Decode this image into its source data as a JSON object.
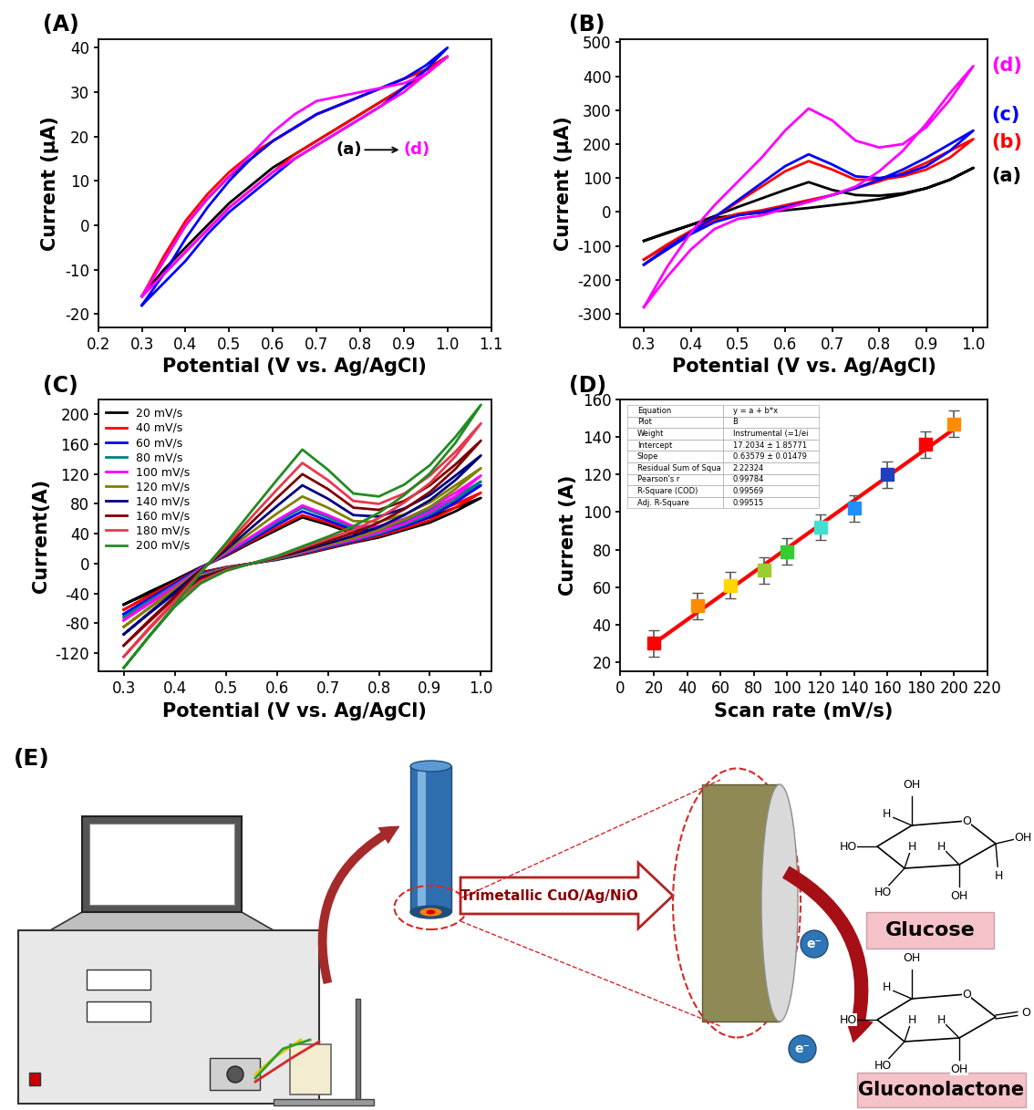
{
  "chart_data": [
    {
      "type": "line",
      "panel_label": "(A)",
      "x_label": "Potential (V vs. Ag/AgCl)",
      "y_label": "Current (μA)",
      "x": [
        0.3,
        0.35,
        0.4,
        0.45,
        0.5,
        0.55,
        0.6,
        0.65,
        0.7,
        0.75,
        0.8,
        0.85,
        0.9,
        0.95,
        1.0,
        0.95,
        0.9,
        0.85,
        0.8,
        0.75,
        0.7,
        0.65,
        0.6,
        0.55,
        0.5,
        0.45,
        0.4,
        0.35,
        0.3
      ],
      "series": [
        {
          "color": "#000000",
          "values": [
            -16,
            -8,
            0,
            6,
            11,
            15,
            19,
            22,
            25,
            27,
            29,
            31,
            33,
            35,
            38,
            35,
            31,
            28,
            25,
            22,
            19,
            16,
            13,
            9,
            5,
            0,
            -5,
            -10,
            -16
          ]
        },
        {
          "color": "#ff0000",
          "values": [
            -16,
            -7,
            1,
            7,
            12,
            16,
            19,
            22,
            25,
            27,
            29,
            31,
            33,
            35,
            38,
            34,
            31,
            28,
            25,
            22,
            19,
            16,
            12,
            8,
            4,
            -1,
            -6,
            -11,
            -16
          ]
        },
        {
          "color": "#0000ff",
          "values": [
            -18,
            -11,
            -3,
            4,
            10,
            15,
            19,
            22,
            25,
            27,
            29,
            31,
            33,
            36,
            40,
            35,
            31,
            27,
            24,
            21,
            18,
            15,
            11,
            7,
            3,
            -2,
            -8,
            -13,
            -18
          ]
        },
        {
          "color": "#ff00ff",
          "values": [
            -16,
            -8,
            0,
            6,
            11,
            16,
            21,
            25,
            28,
            29,
            30,
            31,
            32,
            34,
            38,
            34,
            30,
            27,
            24,
            21,
            18,
            15,
            12,
            8,
            4,
            -1,
            -6,
            -11,
            -16
          ]
        }
      ],
      "annotations": [
        {
          "text": "(a)",
          "color": "#000000"
        },
        {
          "text": "(d)",
          "color": "#ff00ff"
        }
      ],
      "xlim": [
        0.2,
        1.1
      ],
      "xticks": [
        0.2,
        0.3,
        0.4,
        0.5,
        0.6,
        0.7,
        0.8,
        0.9,
        1.0,
        1.1
      ],
      "ylim": [
        -23,
        42
      ],
      "yticks": [
        -20,
        -10,
        0,
        10,
        20,
        30,
        40
      ]
    },
    {
      "type": "line",
      "panel_label": "(B)",
      "x_label": "Potential (V vs. Ag/AgCl)",
      "y_label": "Current (μA)",
      "x": [
        0.3,
        0.35,
        0.4,
        0.45,
        0.5,
        0.55,
        0.6,
        0.65,
        0.7,
        0.75,
        0.8,
        0.85,
        0.9,
        0.95,
        1.0,
        0.95,
        0.9,
        0.85,
        0.8,
        0.75,
        0.7,
        0.65,
        0.6,
        0.55,
        0.5,
        0.45,
        0.4,
        0.35,
        0.3
      ],
      "series": [
        {
          "color": "#000000",
          "values": [
            -85,
            -60,
            -38,
            -12,
            15,
            40,
            65,
            88,
            65,
            50,
            48,
            55,
            70,
            95,
            130,
            95,
            70,
            52,
            38,
            28,
            20,
            12,
            5,
            -2,
            -8,
            -18,
            -38,
            -62,
            -85
          ]
        },
        {
          "color": "#ff0000",
          "values": [
            -140,
            -95,
            -55,
            -15,
            30,
            75,
            120,
            150,
            125,
            95,
            95,
            105,
            125,
            160,
            215,
            180,
            145,
            115,
            90,
            70,
            50,
            35,
            20,
            5,
            -5,
            -25,
            -60,
            -100,
            -140
          ]
        },
        {
          "color": "#0000ff",
          "values": [
            -155,
            -105,
            -60,
            -15,
            35,
            85,
            135,
            170,
            140,
            105,
            100,
            110,
            135,
            180,
            240,
            200,
            160,
            125,
            95,
            70,
            50,
            30,
            15,
            0,
            -10,
            -30,
            -65,
            -110,
            -155
          ]
        },
        {
          "color": "#ff00ff",
          "values": [
            -280,
            -160,
            -60,
            20,
            90,
            160,
            240,
            305,
            270,
            210,
            190,
            200,
            250,
            330,
            430,
            350,
            260,
            180,
            120,
            75,
            50,
            30,
            10,
            -10,
            -20,
            -50,
            -110,
            -190,
            -280
          ]
        }
      ],
      "annotations": [
        {
          "text": "(a)",
          "color": "#000000"
        },
        {
          "text": "(b)",
          "color": "#ff0000"
        },
        {
          "text": "(c)",
          "color": "#0000ff"
        },
        {
          "text": "(d)",
          "color": "#ff00ff"
        }
      ],
      "xlim": [
        0.25,
        1.03
      ],
      "xticks": [
        0.3,
        0.4,
        0.5,
        0.6,
        0.7,
        0.8,
        0.9,
        1.0
      ],
      "ylim": [
        -340,
        510
      ],
      "yticks": [
        -300,
        -200,
        -100,
        0,
        100,
        200,
        300,
        400,
        500
      ]
    },
    {
      "type": "line",
      "panel_label": "(C)",
      "x_label": "Potential (V vs. Ag/AgCl)",
      "y_label": "Current(A)",
      "x": [
        0.3,
        0.35,
        0.4,
        0.45,
        0.5,
        0.55,
        0.6,
        0.65,
        0.7,
        0.75,
        0.8,
        0.85,
        0.9,
        0.95,
        1.0,
        0.95,
        0.9,
        0.85,
        0.8,
        0.75,
        0.7,
        0.65,
        0.6,
        0.55,
        0.5,
        0.45,
        0.4,
        0.35,
        0.3
      ],
      "legend": "upper left",
      "series": [
        {
          "name": "20 mV/s",
          "color": "#000000",
          "values": [
            -55,
            -38,
            -22,
            -5,
            10,
            28,
            45,
            62,
            52,
            40,
            42,
            50,
            62,
            75,
            88,
            70,
            55,
            45,
            35,
            28,
            20,
            12,
            5,
            0,
            -5,
            -12,
            -25,
            -40,
            -55
          ]
        },
        {
          "name": "40 mV/s",
          "color": "#ff0000",
          "values": [
            -62,
            -43,
            -25,
            -6,
            11,
            30,
            48,
            65,
            55,
            42,
            44,
            52,
            65,
            80,
            95,
            75,
            58,
            47,
            37,
            29,
            21,
            13,
            6,
            0,
            -5,
            -13,
            -27,
            -44,
            -62
          ]
        },
        {
          "name": "60 mV/s",
          "color": "#0000ff",
          "values": [
            -68,
            -47,
            -27,
            -6,
            12,
            32,
            52,
            70,
            58,
            45,
            46,
            55,
            68,
            85,
            105,
            82,
            63,
            50,
            39,
            30,
            22,
            14,
            6,
            0,
            -6,
            -14,
            -29,
            -48,
            -68
          ]
        },
        {
          "name": "80 mV/s",
          "color": "#008080",
          "values": [
            -72,
            -50,
            -29,
            -7,
            13,
            34,
            55,
            75,
            62,
            48,
            48,
            58,
            72,
            90,
            110,
            86,
            66,
            52,
            40,
            31,
            23,
            14,
            6,
            0,
            -6,
            -15,
            -31,
            -51,
            -72
          ]
        },
        {
          "name": "100 mV/s",
          "color": "#ff00ff",
          "values": [
            -76,
            -53,
            -31,
            -7,
            14,
            36,
            58,
            78,
            65,
            50,
            50,
            60,
            75,
            95,
            118,
            90,
            69,
            54,
            42,
            32,
            24,
            15,
            7,
            0,
            -7,
            -16,
            -33,
            -54,
            -76
          ]
        },
        {
          "name": "120 mV/s",
          "color": "#808000",
          "values": [
            -85,
            -59,
            -34,
            -8,
            16,
            42,
            67,
            90,
            75,
            57,
            56,
            66,
            82,
            105,
            128,
            100,
            76,
            59,
            45,
            34,
            25,
            16,
            7,
            0,
            -7,
            -17,
            -36,
            -60,
            -85
          ]
        },
        {
          "name": "140 mV/s",
          "color": "#000080",
          "values": [
            -95,
            -66,
            -38,
            -9,
            18,
            48,
            77,
            105,
            87,
            65,
            63,
            74,
            92,
            118,
            145,
            112,
            85,
            65,
            49,
            37,
            27,
            17,
            8,
            0,
            -8,
            -19,
            -40,
            -67,
            -95
          ]
        },
        {
          "name": "160 mV/s",
          "color": "#800000",
          "values": [
            -110,
            -76,
            -44,
            -10,
            21,
            55,
            88,
            120,
            100,
            75,
            72,
            84,
            105,
            133,
            165,
            127,
            96,
            73,
            55,
            41,
            30,
            19,
            8,
            0,
            -8,
            -21,
            -46,
            -78,
            -110
          ]
        },
        {
          "name": "180 mV/s",
          "color": "#e8384f",
          "values": [
            -125,
            -86,
            -50,
            -12,
            24,
            62,
            99,
            135,
            112,
            84,
            80,
            94,
            118,
            150,
            188,
            144,
            108,
            82,
            61,
            45,
            33,
            21,
            9,
            0,
            -9,
            -24,
            -52,
            -88,
            -125
          ]
        },
        {
          "name": "200 mV/s",
          "color": "#228b22",
          "values": [
            -140,
            -97,
            -56,
            -13,
            27,
            70,
            112,
            153,
            126,
            94,
            90,
            106,
            132,
            170,
            213,
            162,
            121,
            92,
            68,
            50,
            36,
            23,
            10,
            0,
            -10,
            -27,
            -58,
            -98,
            -140
          ]
        }
      ],
      "xlim": [
        0.25,
        1.02
      ],
      "xticks": [
        0.3,
        0.4,
        0.5,
        0.6,
        0.7,
        0.8,
        0.9,
        1.0
      ],
      "ylim": [
        -145,
        220
      ],
      "yticks": [
        -120,
        -80,
        -40,
        0,
        40,
        80,
        120,
        160,
        200
      ]
    },
    {
      "type": "scatter",
      "panel_label": "(D)",
      "x_label": "Scan rate (mV/s)",
      "y_label": "Current (A)",
      "x": [
        20,
        46,
        66,
        86,
        100,
        120,
        140,
        160,
        183,
        200
      ],
      "values": [
        30,
        50,
        61,
        69,
        79,
        92,
        102,
        120,
        136,
        147
      ],
      "errors": [
        7,
        7,
        7,
        7,
        7,
        7,
        7,
        7,
        7,
        7
      ],
      "colors": [
        "#ff0000",
        "#ff8c00",
        "#ffd700",
        "#9acd32",
        "#32cd32",
        "#40e0d0",
        "#1e90ff",
        "#1f3fbf",
        "#ff0000",
        "#ff8c00"
      ],
      "marker": "square",
      "fit": {
        "intercept": 17.2034,
        "slope": 0.63579,
        "color": "#ff0000"
      },
      "fit_table": [
        [
          "Equation",
          "y = a + b*x"
        ],
        [
          "Plot",
          "B"
        ],
        [
          "Weight",
          "Instrumental (=1/ei"
        ],
        [
          "Intercept",
          "17.2034 ± 1.85771"
        ],
        [
          "Slope",
          "0.63579 ± 0.01479"
        ],
        [
          "Residual Sum of Squa",
          "2.22324"
        ],
        [
          "Pearson's r",
          "0.99784"
        ],
        [
          "R-Square (COD)",
          "0.99569"
        ],
        [
          "Adj. R-Square",
          "0.99515"
        ]
      ],
      "xlim": [
        0,
        220
      ],
      "xticks": [
        0,
        20,
        40,
        60,
        80,
        100,
        120,
        140,
        160,
        180,
        200,
        220
      ],
      "ylim": [
        15,
        160
      ],
      "yticks": [
        20,
        40,
        60,
        80,
        100,
        120,
        140,
        160
      ]
    }
  ],
  "schematic": {
    "panel_label": "(E)",
    "electrode_label": "Trimetallic CuO/Ag/NiO",
    "reactant": "Glucose",
    "product": "Gluconolactone",
    "electron": "e⁻",
    "reactant_atoms": [
      "OH",
      "H",
      "O",
      "OH",
      "H",
      "OH",
      "H",
      "HO",
      "H",
      "HO"
    ],
    "product_atoms": [
      "OH",
      "H",
      "O",
      "O",
      "OH",
      "H",
      "HO",
      "H",
      "HO"
    ]
  }
}
